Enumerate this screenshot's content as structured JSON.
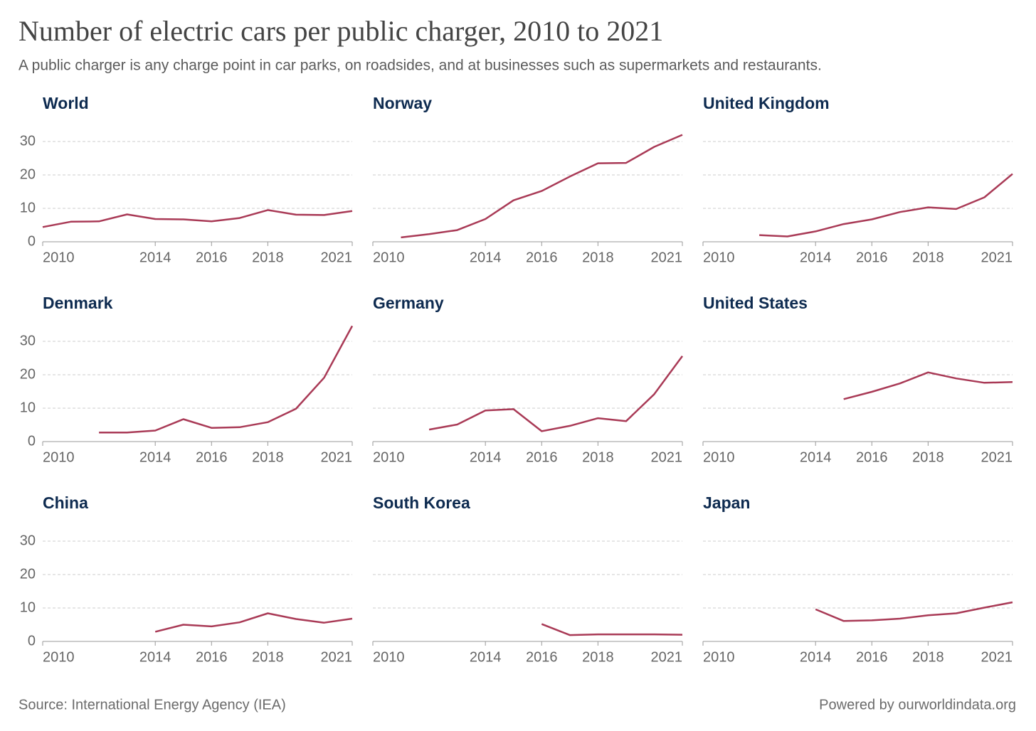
{
  "title": "Number of electric cars per public charger, 2010 to 2021",
  "subtitle": "A public charger is any charge point in car parks, on roadsides, and at businesses such as supermarkets and restaurants.",
  "source": "Source: International Energy Agency (IEA)",
  "credit": "Powered by ourworldindata.org",
  "chart_data": [
    {
      "type": "line",
      "title": "World",
      "x": [
        2010,
        2011,
        2012,
        2013,
        2014,
        2015,
        2016,
        2017,
        2018,
        2019,
        2020,
        2021
      ],
      "values": [
        4.4,
        6.0,
        6.1,
        8.2,
        6.8,
        6.7,
        6.1,
        7.1,
        9.5,
        8.1,
        8.0,
        9.2
      ],
      "color": "#a93a56",
      "xlim": [
        2010,
        2021
      ],
      "xticks": [
        2010,
        2014,
        2016,
        2018,
        2021
      ],
      "ylim": [
        0,
        35
      ],
      "yticks": [
        0,
        10,
        20,
        30
      ],
      "show_ytick_labels": true,
      "grid": true
    },
    {
      "type": "line",
      "title": "Norway",
      "x": [
        2010,
        2011,
        2012,
        2013,
        2014,
        2015,
        2016,
        2017,
        2018,
        2019,
        2020,
        2021
      ],
      "values": [
        null,
        1.3,
        2.3,
        3.5,
        6.8,
        12.4,
        15.2,
        19.5,
        23.5,
        23.6,
        28.4,
        32.0
      ],
      "color": "#a93a56",
      "xlim": [
        2010,
        2021
      ],
      "xticks": [
        2010,
        2014,
        2016,
        2018,
        2021
      ],
      "ylim": [
        0,
        35
      ],
      "yticks": [
        0,
        10,
        20,
        30
      ],
      "show_ytick_labels": false,
      "grid": true
    },
    {
      "type": "line",
      "title": "United Kingdom",
      "x": [
        2010,
        2011,
        2012,
        2013,
        2014,
        2015,
        2016,
        2017,
        2018,
        2019,
        2020,
        2021
      ],
      "values": [
        null,
        null,
        2.0,
        1.6,
        3.1,
        5.3,
        6.7,
        8.9,
        10.3,
        9.8,
        13.3,
        20.3
      ],
      "color": "#a93a56",
      "xlim": [
        2010,
        2021
      ],
      "xticks": [
        2010,
        2014,
        2016,
        2018,
        2021
      ],
      "ylim": [
        0,
        35
      ],
      "yticks": [
        0,
        10,
        20,
        30
      ],
      "show_ytick_labels": false,
      "grid": true
    },
    {
      "type": "line",
      "title": "Denmark",
      "x": [
        2010,
        2011,
        2012,
        2013,
        2014,
        2015,
        2016,
        2017,
        2018,
        2019,
        2020,
        2021
      ],
      "values": [
        null,
        null,
        2.7,
        2.7,
        3.3,
        6.7,
        4.1,
        4.3,
        5.8,
        9.8,
        19.1,
        34.6
      ],
      "color": "#a93a56",
      "xlim": [
        2010,
        2021
      ],
      "xticks": [
        2010,
        2014,
        2016,
        2018,
        2021
      ],
      "ylim": [
        0,
        35
      ],
      "yticks": [
        0,
        10,
        20,
        30
      ],
      "show_ytick_labels": true,
      "grid": true
    },
    {
      "type": "line",
      "title": "Germany",
      "x": [
        2010,
        2011,
        2012,
        2013,
        2014,
        2015,
        2016,
        2017,
        2018,
        2019,
        2020,
        2021
      ],
      "values": [
        null,
        null,
        3.6,
        5.1,
        9.3,
        9.7,
        3.1,
        4.7,
        7.0,
        6.1,
        14.2,
        25.6
      ],
      "color": "#a93a56",
      "xlim": [
        2010,
        2021
      ],
      "xticks": [
        2010,
        2014,
        2016,
        2018,
        2021
      ],
      "ylim": [
        0,
        35
      ],
      "yticks": [
        0,
        10,
        20,
        30
      ],
      "show_ytick_labels": false,
      "grid": true
    },
    {
      "type": "line",
      "title": "United States",
      "x": [
        2010,
        2011,
        2012,
        2013,
        2014,
        2015,
        2016,
        2017,
        2018,
        2019,
        2020,
        2021
      ],
      "values": [
        null,
        null,
        null,
        null,
        null,
        12.7,
        14.9,
        17.4,
        20.7,
        18.9,
        17.6,
        17.8
      ],
      "color": "#a93a56",
      "xlim": [
        2010,
        2021
      ],
      "xticks": [
        2010,
        2014,
        2016,
        2018,
        2021
      ],
      "ylim": [
        0,
        35
      ],
      "yticks": [
        0,
        10,
        20,
        30
      ],
      "show_ytick_labels": false,
      "grid": true
    },
    {
      "type": "line",
      "title": "China",
      "x": [
        2010,
        2011,
        2012,
        2013,
        2014,
        2015,
        2016,
        2017,
        2018,
        2019,
        2020,
        2021
      ],
      "values": [
        null,
        null,
        null,
        null,
        2.9,
        5.0,
        4.5,
        5.7,
        8.4,
        6.7,
        5.6,
        6.8
      ],
      "color": "#a93a56",
      "xlim": [
        2010,
        2021
      ],
      "xticks": [
        2010,
        2014,
        2016,
        2018,
        2021
      ],
      "ylim": [
        0,
        35
      ],
      "yticks": [
        0,
        10,
        20,
        30
      ],
      "show_ytick_labels": true,
      "grid": true
    },
    {
      "type": "line",
      "title": "South Korea",
      "x": [
        2010,
        2011,
        2012,
        2013,
        2014,
        2015,
        2016,
        2017,
        2018,
        2019,
        2020,
        2021
      ],
      "values": [
        null,
        null,
        null,
        null,
        null,
        null,
        5.2,
        1.9,
        2.1,
        2.1,
        2.1,
        2.0
      ],
      "color": "#a93a56",
      "xlim": [
        2010,
        2021
      ],
      "xticks": [
        2010,
        2014,
        2016,
        2018,
        2021
      ],
      "ylim": [
        0,
        35
      ],
      "yticks": [
        0,
        10,
        20,
        30
      ],
      "show_ytick_labels": false,
      "grid": true
    },
    {
      "type": "line",
      "title": "Japan",
      "x": [
        2010,
        2011,
        2012,
        2013,
        2014,
        2015,
        2016,
        2017,
        2018,
        2019,
        2020,
        2021
      ],
      "values": [
        null,
        null,
        null,
        null,
        9.6,
        6.1,
        6.3,
        6.8,
        7.8,
        8.4,
        10.1,
        11.7
      ],
      "color": "#a93a56",
      "xlim": [
        2010,
        2021
      ],
      "xticks": [
        2010,
        2014,
        2016,
        2018,
        2021
      ],
      "ylim": [
        0,
        35
      ],
      "yticks": [
        0,
        10,
        20,
        30
      ],
      "show_ytick_labels": false,
      "grid": true
    }
  ]
}
